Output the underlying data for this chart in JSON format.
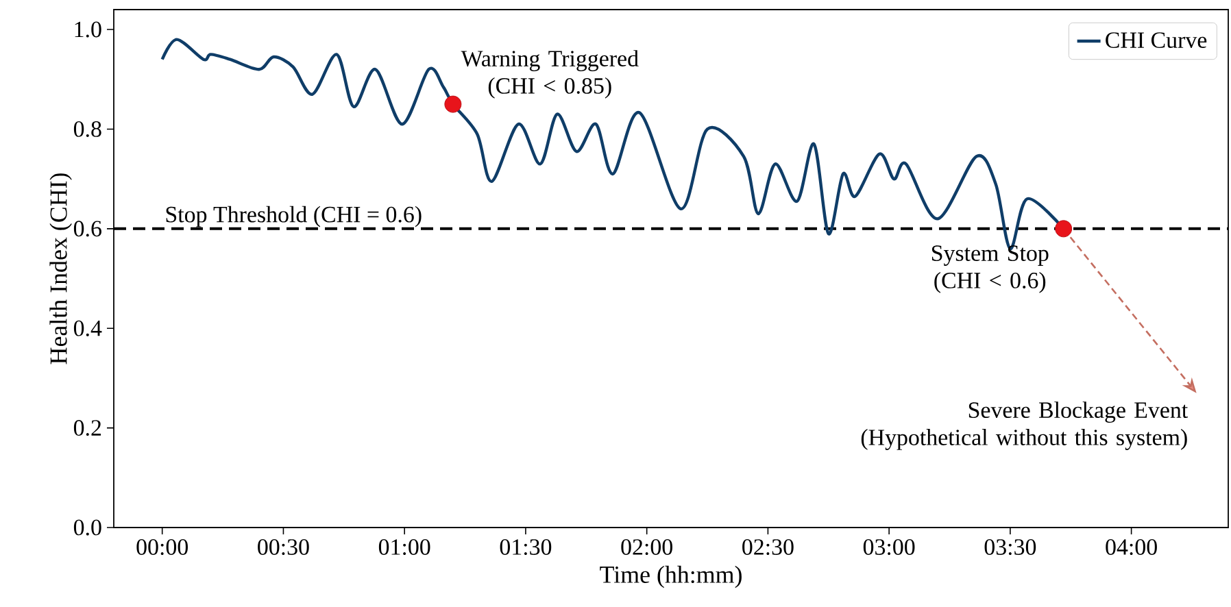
{
  "chart_data": {
    "type": "line",
    "xlabel": "Time (hh:mm)",
    "ylabel": "Health Index (CHI)",
    "xlim": [
      -0.2,
      4.4
    ],
    "ylim": [
      0,
      1.04
    ],
    "xticks": [
      {
        "value": 0,
        "label": "00:00"
      },
      {
        "value": 0.5,
        "label": "00:30"
      },
      {
        "value": 1,
        "label": "01:00"
      },
      {
        "value": 1.5,
        "label": "01:30"
      },
      {
        "value": 2,
        "label": "02:00"
      },
      {
        "value": 2.5,
        "label": "02:30"
      },
      {
        "value": 3,
        "label": "03:00"
      },
      {
        "value": 3.5,
        "label": "03:30"
      },
      {
        "value": 4,
        "label": "04:00"
      }
    ],
    "yticks": [
      {
        "value": 0,
        "label": "0.0"
      },
      0.2,
      0.4,
      0.6,
      0.8,
      {
        "value": 1,
        "label": "1.0"
      }
    ],
    "grid": false,
    "legend": "top right",
    "series": [
      {
        "name": "CHI Curve",
        "color": "#0f3d68",
        "x": [
          0,
          0.06,
          0.17,
          0.2,
          0.28,
          0.4,
          0.46,
          0.54,
          0.62,
          0.72,
          0.79,
          0.88,
          0.99,
          1.1,
          1.16,
          1.2,
          1.3,
          1.36,
          1.47,
          1.56,
          1.63,
          1.71,
          1.79,
          1.86,
          1.97,
          2.14,
          2.25,
          2.4,
          2.46,
          2.53,
          2.62,
          2.69,
          2.75,
          2.81,
          2.86,
          2.96,
          3.02,
          3.07,
          3.2,
          3.36,
          3.44,
          3.5,
          3.57,
          3.72
        ],
        "values": [
          0.94,
          0.98,
          0.94,
          0.95,
          0.94,
          0.92,
          0.945,
          0.925,
          0.87,
          0.95,
          0.845,
          0.92,
          0.81,
          0.92,
          0.885,
          0.85,
          0.79,
          0.695,
          0.81,
          0.73,
          0.83,
          0.755,
          0.81,
          0.71,
          0.833,
          0.64,
          0.8,
          0.745,
          0.63,
          0.73,
          0.655,
          0.77,
          0.59,
          0.71,
          0.665,
          0.75,
          0.7,
          0.73,
          0.62,
          0.745,
          0.69,
          0.56,
          0.66,
          0.6
        ]
      },
      {
        "type": "scatter",
        "color": "#e8141b",
        "marker": "circle",
        "x": [
          1.2,
          3.72
        ],
        "values": [
          0.85,
          0.6
        ]
      }
    ],
    "ref_lines": [
      {
        "axis": "y",
        "value": 0.6,
        "label": "Stop Threshold (CHI = 0.6)",
        "color": "#000000",
        "line_style": "dashed"
      }
    ],
    "annotations": [
      {
        "text": "Warning Triggered (CHI < 0.85)",
        "x": 1.2,
        "y": 0.85
      },
      {
        "text": "System Stop (CHI < 0.6)",
        "x": 3.72,
        "y": 0.6
      },
      "Severe Blockage Event (Hypothetical without this system)"
    ]
  }
}
